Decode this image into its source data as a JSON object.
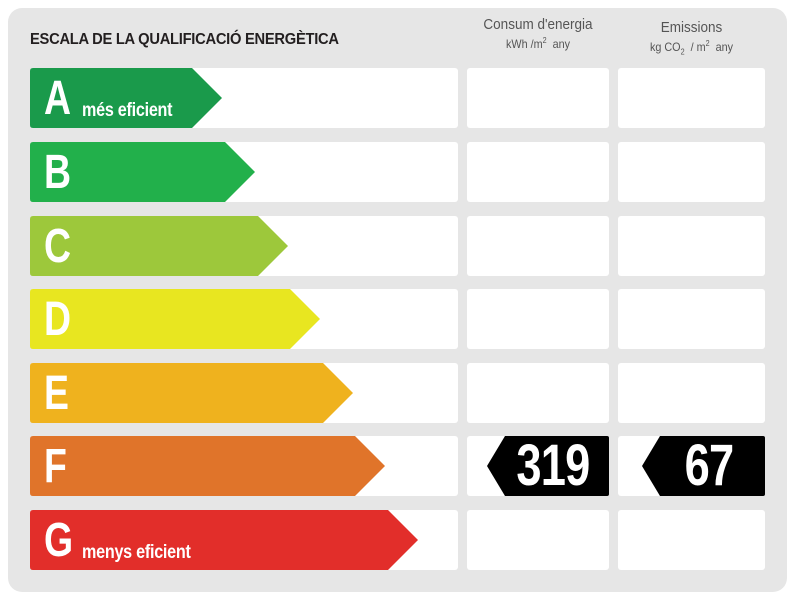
{
  "header": {
    "title": "ESCALA DE LA QUALIFICACIÓ ENERGÈTICA",
    "consum": {
      "line1": "Consum d'energia",
      "unit_pre": "kWh /m",
      "unit_sup": "2",
      "unit_post": "  any"
    },
    "emissions": {
      "line1": "Emissions",
      "unit_pre": "kg CO",
      "unit_sub": "2",
      "unit_mid": "  / m",
      "unit_sup": "2",
      "unit_post": "  any"
    }
  },
  "ratings": [
    {
      "letter": "A",
      "sublabel": "més eficient",
      "color": "#1a9a4b"
    },
    {
      "letter": "B",
      "sublabel": "",
      "color": "#22b04b"
    },
    {
      "letter": "C",
      "sublabel": "",
      "color": "#9dc83b"
    },
    {
      "letter": "D",
      "sublabel": "",
      "color": "#e8e620"
    },
    {
      "letter": "E",
      "sublabel": "",
      "color": "#efb21e"
    },
    {
      "letter": "F",
      "sublabel": "",
      "color": "#e0742a"
    },
    {
      "letter": "G",
      "sublabel": "menys eficient",
      "color": "#e22e2a"
    }
  ],
  "result": {
    "rating": "F",
    "consum_value": "319",
    "emissions_value": "67",
    "tag_color": "#000000"
  },
  "chart_data": {
    "type": "table",
    "title": "ESCALA DE LA QUALIFICACIÓ ENERGÈTICA",
    "columns": [
      "Qualificació",
      "Consum d'energia (kWh/m² any)",
      "Emissions (kg CO₂/m² any)"
    ],
    "categories": [
      "A",
      "B",
      "C",
      "D",
      "E",
      "F",
      "G"
    ],
    "category_labels": {
      "A": "més eficient",
      "G": "menys eficient"
    },
    "colors": [
      "#1a9a4b",
      "#22b04b",
      "#9dc83b",
      "#e8e620",
      "#efb21e",
      "#e0742a",
      "#e22e2a"
    ],
    "selected_rating": "F",
    "series": [
      {
        "name": "Consum d'energia (kWh/m² any)",
        "values": [
          null,
          null,
          null,
          null,
          null,
          319,
          null
        ]
      },
      {
        "name": "Emissions (kg CO₂/m² any)",
        "values": [
          null,
          null,
          null,
          null,
          null,
          67,
          null
        ]
      }
    ]
  }
}
